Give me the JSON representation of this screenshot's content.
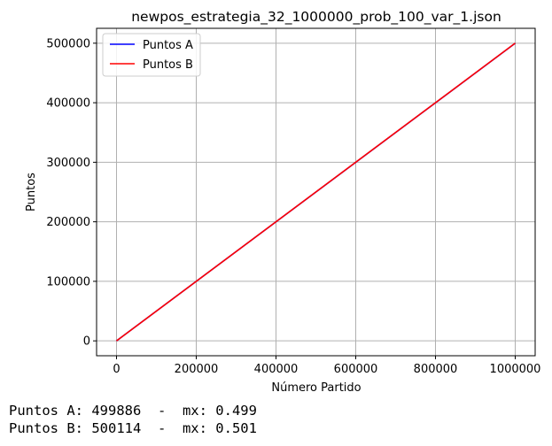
{
  "chart_data": {
    "type": "line",
    "title": "newpos_estrategia_32_1000000_prob_100_var_1.json",
    "xlabel": "Número Partido",
    "ylabel": "Puntos",
    "xlim": [
      -50000,
      1050000
    ],
    "ylim": [
      -25000,
      525000
    ],
    "xticks": [
      0,
      200000,
      400000,
      600000,
      800000,
      1000000
    ],
    "yticks": [
      0,
      100000,
      200000,
      300000,
      400000,
      500000
    ],
    "grid": true,
    "legend_position": "top-left",
    "series": [
      {
        "name": "Puntos A",
        "color": "#0000ff",
        "x": [
          0,
          1000000
        ],
        "y": [
          0,
          499886
        ]
      },
      {
        "name": "Puntos B",
        "color": "#ff0000",
        "x": [
          0,
          1000000
        ],
        "y": [
          0,
          500114
        ]
      }
    ]
  },
  "stats": {
    "line_a": "Puntos A: 499886  -  mx: 0.499",
    "line_b": "Puntos B: 500114  -  mx: 0.501"
  }
}
